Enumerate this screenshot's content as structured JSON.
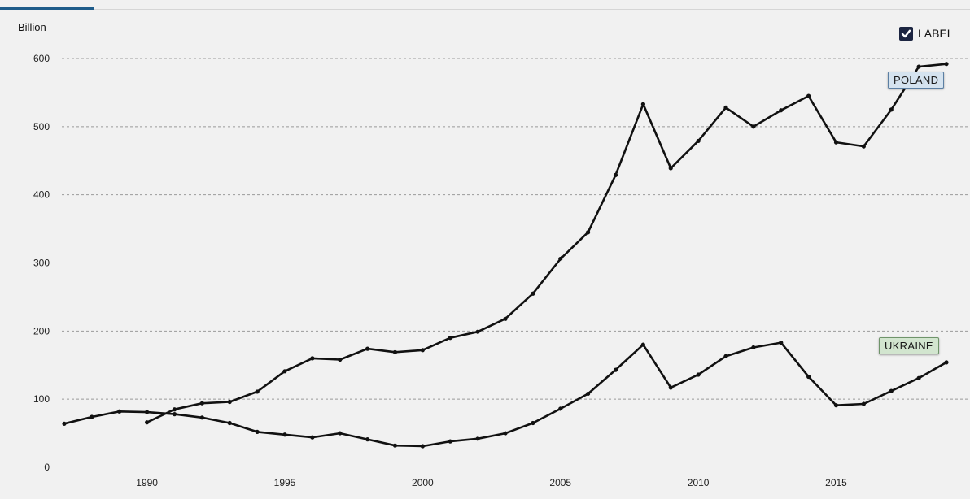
{
  "colors": {
    "line": "#111111",
    "grid": "#9a9a9a",
    "background": "#f1f1f1",
    "checkbox": "#1c2541",
    "poland_tag_bg": "#d5e3ef",
    "ukraine_tag_bg": "#d2e5cf"
  },
  "controls": {
    "label_toggle_text": "LABEL",
    "label_toggle_checked": true,
    "checkbox_icon": "check-icon"
  },
  "chart_data": {
    "type": "line",
    "title": "",
    "ylabel": "Billion",
    "xlabel": "",
    "xlim": [
      1987,
      2019
    ],
    "ylim": [
      0,
      600
    ],
    "y_ticks": [
      0,
      100,
      200,
      300,
      400,
      500,
      600
    ],
    "x_ticks": [
      1990,
      1995,
      2000,
      2005,
      2010,
      2015
    ],
    "grid": "horizontal dashed",
    "series": [
      {
        "name": "POLAND",
        "x": [
          1990,
          1991,
          1992,
          1993,
          1994,
          1995,
          1996,
          1997,
          1998,
          1999,
          2000,
          2001,
          2002,
          2003,
          2004,
          2005,
          2006,
          2007,
          2008,
          2009,
          2010,
          2011,
          2012,
          2013,
          2014,
          2015,
          2016,
          2017,
          2018,
          2019
        ],
        "values": [
          66,
          85,
          94,
          96,
          111,
          141,
          160,
          158,
          174,
          169,
          172,
          190,
          199,
          218,
          255,
          306,
          345,
          429,
          533,
          439,
          479,
          528,
          500,
          524,
          545,
          477,
          471,
          525,
          588,
          592
        ]
      },
      {
        "name": "UKRAINE",
        "x": [
          1987,
          1988,
          1989,
          1990,
          1991,
          1992,
          1993,
          1994,
          1995,
          1996,
          1997,
          1998,
          1999,
          2000,
          2001,
          2002,
          2003,
          2004,
          2005,
          2006,
          2007,
          2008,
          2009,
          2010,
          2011,
          2012,
          2013,
          2014,
          2015,
          2016,
          2017,
          2018,
          2019
        ],
        "values": [
          64,
          74,
          82,
          81,
          78,
          73,
          65,
          52,
          48,
          44,
          50,
          41,
          32,
          31,
          38,
          42,
          50,
          65,
          86,
          108,
          143,
          180,
          117,
          136,
          163,
          176,
          183,
          133,
          91,
          93,
          112,
          131,
          154
        ]
      }
    ]
  }
}
